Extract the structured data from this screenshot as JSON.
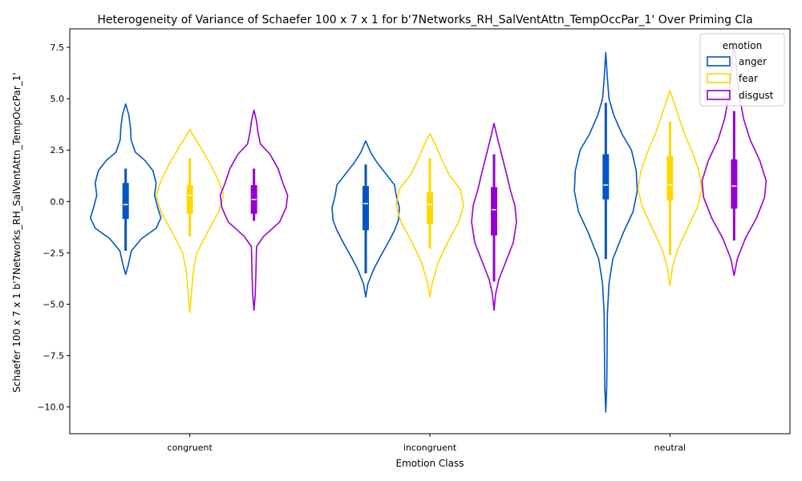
{
  "chart_data": {
    "type": "violin",
    "title": "Heterogeneity of Variance of Schaefer 100 x 7 x 1 for b'7Networks_RH_SalVentAttn_TempOccPar_1' Over Priming Cla",
    "xlabel": "Emotion Class",
    "ylabel": "Schaefer 100 x 7 x 1 b'7Networks_RH_SalVentAttn_TempOccPar_1'",
    "categories": [
      "congruent",
      "incongruent",
      "neutral"
    ],
    "yticks": [
      "−10.0",
      "−7.5",
      "−5.0",
      "−2.5",
      "0.0",
      "2.5",
      "5.0",
      "7.5"
    ],
    "ylim": [
      -11.3,
      8.4
    ],
    "legend": {
      "title": "emotion",
      "position": "top-right",
      "entries": [
        "anger",
        "fear",
        "disgust"
      ]
    },
    "colors": {
      "anger": "#0055c4",
      "fear": "#ffd700",
      "disgust": "#9400d3"
    },
    "series": [
      {
        "name": "anger",
        "violins": [
          {
            "min": -3.55,
            "max": 4.75,
            "q1": -0.85,
            "median": -0.15,
            "q3": 0.9,
            "whisker_low": -2.4,
            "whisker_high": 1.6,
            "profile": [
              [
                -3.55,
                0.0
              ],
              [
                -3.1,
                0.08
              ],
              [
                -2.4,
                0.18
              ],
              [
                -1.8,
                0.5
              ],
              [
                -1.3,
                0.95
              ],
              [
                -0.8,
                1.1
              ],
              [
                -0.3,
                1.0
              ],
              [
                0.3,
                0.9
              ],
              [
                0.9,
                0.95
              ],
              [
                1.5,
                0.85
              ],
              [
                2.0,
                0.6
              ],
              [
                2.4,
                0.3
              ],
              [
                3.0,
                0.17
              ],
              [
                3.6,
                0.15
              ],
              [
                4.2,
                0.1
              ],
              [
                4.75,
                0.0
              ]
            ]
          },
          {
            "min": -4.65,
            "max": 2.95,
            "q1": -1.4,
            "median": -0.1,
            "q3": 0.75,
            "whisker_low": -3.5,
            "whisker_high": 1.8,
            "profile": [
              [
                -4.65,
                0.0
              ],
              [
                -4.0,
                0.07
              ],
              [
                -3.3,
                0.25
              ],
              [
                -2.7,
                0.45
              ],
              [
                -2.0,
                0.7
              ],
              [
                -1.4,
                0.9
              ],
              [
                -0.9,
                1.02
              ],
              [
                -0.3,
                1.05
              ],
              [
                0.3,
                0.95
              ],
              [
                0.8,
                0.9
              ],
              [
                1.4,
                0.6
              ],
              [
                1.9,
                0.35
              ],
              [
                2.4,
                0.15
              ],
              [
                2.95,
                0.0
              ]
            ]
          },
          {
            "min": -10.25,
            "max": 7.25,
            "q1": 0.1,
            "median": 0.8,
            "q3": 2.3,
            "whisker_low": -2.8,
            "whisker_high": 4.8,
            "profile": [
              [
                -10.25,
                0.0
              ],
              [
                -9.0,
                0.03
              ],
              [
                -7.5,
                0.04
              ],
              [
                -5.5,
                0.05
              ],
              [
                -4.0,
                0.1
              ],
              [
                -2.8,
                0.22
              ],
              [
                -1.5,
                0.55
              ],
              [
                -0.5,
                0.85
              ],
              [
                0.5,
                0.98
              ],
              [
                1.5,
                0.95
              ],
              [
                2.5,
                0.8
              ],
              [
                3.3,
                0.5
              ],
              [
                4.2,
                0.25
              ],
              [
                5.0,
                0.1
              ],
              [
                6.0,
                0.05
              ],
              [
                7.25,
                0.0
              ]
            ]
          }
        ]
      },
      {
        "name": "fear",
        "violins": [
          {
            "min": -5.4,
            "max": 3.5,
            "q1": -0.6,
            "median": 0.3,
            "q3": 0.8,
            "whisker_low": -1.7,
            "whisker_high": 2.1,
            "profile": [
              [
                -5.4,
                0.0
              ],
              [
                -4.5,
                0.05
              ],
              [
                -3.5,
                0.1
              ],
              [
                -2.5,
                0.22
              ],
              [
                -1.5,
                0.55
              ],
              [
                -0.5,
                0.9
              ],
              [
                0.3,
                1.05
              ],
              [
                1.0,
                0.9
              ],
              [
                1.8,
                0.65
              ],
              [
                2.6,
                0.35
              ],
              [
                3.1,
                0.15
              ],
              [
                3.5,
                0.0
              ]
            ]
          },
          {
            "min": -4.65,
            "max": 3.3,
            "q1": -1.1,
            "median": -0.15,
            "q3": 0.45,
            "whisker_low": -2.3,
            "whisker_high": 2.1,
            "profile": [
              [
                -4.65,
                0.0
              ],
              [
                -4.0,
                0.07
              ],
              [
                -3.0,
                0.25
              ],
              [
                -2.0,
                0.55
              ],
              [
                -1.0,
                0.9
              ],
              [
                -0.2,
                1.05
              ],
              [
                0.6,
                0.95
              ],
              [
                1.3,
                0.6
              ],
              [
                2.0,
                0.38
              ],
              [
                2.6,
                0.22
              ],
              [
                3.0,
                0.1
              ],
              [
                3.3,
                0.0
              ]
            ]
          },
          {
            "min": -4.1,
            "max": 5.4,
            "q1": 0.05,
            "median": 0.8,
            "q3": 2.2,
            "whisker_low": -2.6,
            "whisker_high": 3.9,
            "profile": [
              [
                -4.1,
                0.0
              ],
              [
                -3.2,
                0.08
              ],
              [
                -2.3,
                0.25
              ],
              [
                -1.3,
                0.55
              ],
              [
                -0.3,
                0.85
              ],
              [
                0.6,
                1.0
              ],
              [
                1.5,
                0.9
              ],
              [
                2.4,
                0.7
              ],
              [
                3.3,
                0.45
              ],
              [
                4.0,
                0.3
              ],
              [
                4.7,
                0.15
              ],
              [
                5.4,
                0.0
              ]
            ]
          }
        ]
      },
      {
        "name": "disgust",
        "violins": [
          {
            "min": -5.3,
            "max": 4.45,
            "q1": -0.6,
            "median": 0.1,
            "q3": 0.8,
            "whisker_low": -0.95,
            "whisker_high": 1.6,
            "profile": [
              [
                -5.3,
                0.0
              ],
              [
                -4.5,
                0.04
              ],
              [
                -3.5,
                0.06
              ],
              [
                -2.2,
                0.08
              ],
              [
                -1.7,
                0.3
              ],
              [
                -1.0,
                0.8
              ],
              [
                -0.3,
                1.0
              ],
              [
                0.3,
                1.05
              ],
              [
                0.9,
                0.9
              ],
              [
                1.6,
                0.75
              ],
              [
                2.3,
                0.5
              ],
              [
                2.8,
                0.2
              ],
              [
                3.4,
                0.12
              ],
              [
                3.9,
                0.08
              ],
              [
                4.45,
                0.0
              ]
            ]
          },
          {
            "min": -5.3,
            "max": 3.8,
            "q1": -1.65,
            "median": -0.4,
            "q3": 0.7,
            "whisker_low": -3.9,
            "whisker_high": 2.3,
            "profile": [
              [
                -5.3,
                0.0
              ],
              [
                -4.5,
                0.05
              ],
              [
                -3.8,
                0.15
              ],
              [
                -3.0,
                0.35
              ],
              [
                -2.0,
                0.6
              ],
              [
                -1.0,
                0.7
              ],
              [
                -0.2,
                0.65
              ],
              [
                0.6,
                0.5
              ],
              [
                1.4,
                0.38
              ],
              [
                2.2,
                0.25
              ],
              [
                3.0,
                0.12
              ],
              [
                3.8,
                0.0
              ]
            ]
          },
          {
            "min": -3.6,
            "max": 7.7,
            "q1": -0.35,
            "median": 0.75,
            "q3": 2.05,
            "whisker_low": -1.9,
            "whisker_high": 4.4,
            "profile": [
              [
                -3.6,
                0.0
              ],
              [
                -2.8,
                0.1
              ],
              [
                -1.8,
                0.35
              ],
              [
                -0.8,
                0.7
              ],
              [
                0.2,
                0.95
              ],
              [
                1.0,
                1.0
              ],
              [
                2.0,
                0.8
              ],
              [
                3.0,
                0.5
              ],
              [
                4.0,
                0.3
              ],
              [
                5.0,
                0.18
              ],
              [
                6.0,
                0.1
              ],
              [
                7.0,
                0.05
              ],
              [
                7.7,
                0.0
              ]
            ]
          }
        ]
      }
    ]
  }
}
